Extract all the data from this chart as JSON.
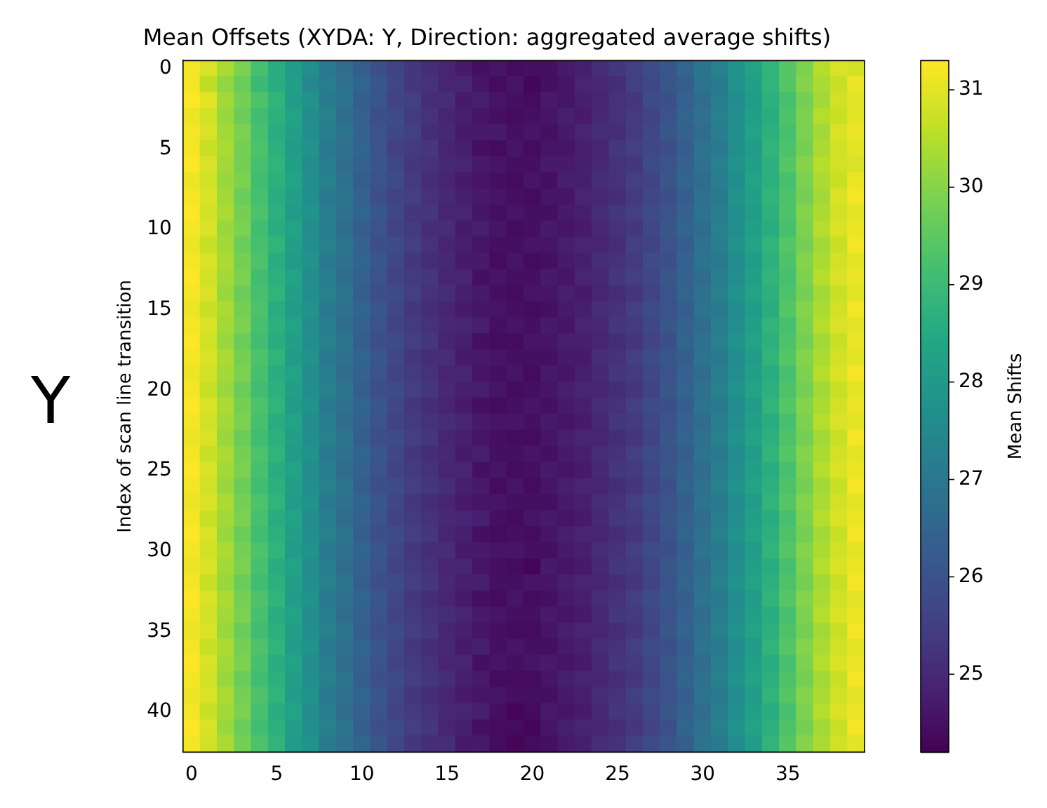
{
  "chart_data": {
    "type": "heatmap",
    "title": "Mean Offsets (XYDA: Y, Direction: aggregated average shifts)",
    "ylabel": "Index of scan line transition",
    "clabel": "Mean Shifts",
    "annotations": [
      "Y"
    ],
    "categories": [
      "0",
      null,
      null,
      null,
      null,
      "5",
      null,
      null,
      null,
      null,
      "10",
      null,
      null,
      null,
      null,
      "15",
      null,
      null,
      null,
      null,
      "20",
      null,
      null,
      null,
      null,
      "25",
      null,
      null,
      null,
      null,
      "30",
      null,
      null,
      null,
      null,
      "35",
      null,
      null,
      null,
      null
    ],
    "y_categories": [
      "0",
      null,
      null,
      null,
      null,
      "5",
      null,
      null,
      null,
      null,
      "10",
      null,
      null,
      null,
      null,
      "15",
      null,
      null,
      null,
      null,
      "20",
      null,
      null,
      null,
      null,
      "25",
      null,
      null,
      null,
      null,
      "30",
      null,
      null,
      null,
      null,
      "35",
      null,
      null,
      null,
      null,
      "40",
      null,
      null
    ],
    "clim": [
      24.2,
      31.3
    ],
    "cticks": [
      25,
      26,
      27,
      28,
      29,
      30,
      31
    ],
    "cells": [
      [
        31.2,
        30.9,
        30.4,
        29.9,
        29.2,
        28.6,
        28.1,
        27.7,
        27.1,
        26.7,
        26.3,
        25.9,
        25.6,
        25.3,
        25.1,
        24.9,
        24.7,
        24.5,
        24.6,
        24.4,
        24.5,
        24.5,
        24.7,
        24.8,
        25.1,
        25.3,
        25.5,
        25.8,
        26.1,
        26.5,
        26.9,
        27.3,
        27.8,
        28.3,
        28.8,
        29.4,
        29.9,
        30.5,
        30.9,
        30.8
      ],
      [
        31.2,
        30.6,
        30.1,
        29.7,
        29.0,
        28.6,
        28.2,
        27.5,
        27.2,
        26.8,
        26.5,
        26.1,
        25.7,
        25.3,
        25.2,
        24.9,
        24.9,
        24.6,
        24.4,
        24.6,
        24.3,
        24.5,
        24.6,
        24.9,
        25.0,
        25.1,
        25.5,
        25.7,
        26.1,
        26.3,
        26.9,
        27.1,
        27.8,
        28.2,
        28.8,
        29.4,
        30.0,
        30.4,
        30.7,
        31.1
      ],
      [
        31.3,
        31.0,
        30.3,
        29.8,
        29.3,
        28.8,
        28.1,
        27.8,
        27.1,
        26.9,
        26.3,
        26.1,
        25.6,
        25.5,
        25.1,
        25.1,
        24.7,
        24.8,
        24.6,
        24.5,
        24.4,
        24.7,
        24.6,
        24.8,
        24.9,
        25.2,
        25.3,
        25.8,
        25.9,
        26.4,
        26.7,
        27.2,
        27.6,
        28.1,
        28.7,
        29.2,
        29.8,
        30.3,
        30.8,
        31.0
      ],
      [
        31.1,
        30.8,
        30.2,
        29.7,
        29.1,
        28.7,
        28.3,
        27.6,
        27.3,
        26.7,
        26.4,
        25.9,
        25.8,
        25.4,
        25.2,
        24.9,
        24.8,
        24.6,
        24.5,
        24.4,
        24.5,
        24.6,
        24.8,
        24.7,
        25.0,
        25.2,
        25.4,
        25.6,
        26.0,
        26.5,
        26.8,
        27.3,
        27.7,
        28.2,
        28.6,
        29.3,
        29.9,
        30.5,
        30.7,
        31.0
      ],
      [
        31.2,
        30.9,
        30.3,
        29.9,
        29.2,
        28.6,
        28.2,
        27.7,
        27.2,
        26.9,
        26.4,
        26.0,
        25.7,
        25.5,
        25.1,
        25.0,
        24.7,
        24.7,
        24.7,
        24.5,
        24.6,
        24.5,
        24.7,
        24.9,
        25.1,
        25.1,
        25.4,
        25.7,
        26.1,
        26.4,
        26.7,
        27.2,
        27.7,
        28.3,
        28.7,
        29.2,
        29.9,
        30.3,
        30.9,
        31.1
      ],
      [
        31.2,
        30.7,
        30.4,
        29.8,
        29.3,
        28.7,
        28.1,
        27.8,
        27.1,
        26.8,
        26.5,
        26.0,
        25.5,
        25.4,
        25.3,
        24.9,
        24.8,
        24.5,
        24.4,
        24.6,
        24.4,
        24.6,
        24.6,
        24.8,
        24.9,
        25.3,
        25.5,
        25.7,
        25.9,
        26.3,
        26.9,
        27.1,
        27.7,
        28.1,
        28.8,
        29.3,
        29.8,
        30.4,
        30.8,
        31.0
      ],
      [
        31.3,
        30.9,
        30.3,
        29.8,
        29.2,
        28.8,
        28.2,
        27.6,
        27.2,
        26.7,
        26.4,
        26.1,
        25.7,
        25.3,
        25.2,
        25.0,
        24.9,
        24.7,
        24.6,
        24.5,
        24.5,
        24.7,
        24.7,
        24.8,
        25.0,
        25.2,
        25.3,
        25.8,
        26.0,
        26.4,
        26.8,
        27.3,
        27.8,
        28.2,
        28.7,
        29.4,
        30.0,
        30.5,
        30.8,
        30.9
      ],
      [
        31.1,
        30.8,
        30.2,
        29.9,
        29.1,
        28.7,
        28.3,
        27.7,
        27.3,
        26.8,
        26.3,
        26.0,
        25.8,
        25.4,
        25.1,
        24.9,
        24.7,
        24.6,
        24.5,
        24.4,
        24.6,
        24.5,
        24.8,
        24.8,
        25.1,
        25.2,
        25.5,
        25.6,
        26.1,
        26.5,
        26.7,
        27.2,
        27.6,
        28.3,
        28.7,
        29.2,
        29.9,
        30.4,
        30.7,
        31.1
      ],
      [
        31.2,
        30.9,
        30.3,
        29.7,
        29.2,
        28.6,
        28.2,
        27.7,
        27.1,
        26.9,
        26.4,
        25.9,
        25.6,
        25.5,
        25.2,
        25.0,
        24.8,
        24.7,
        24.6,
        24.5,
        24.4,
        24.6,
        24.6,
        24.9,
        25.0,
        25.1,
        25.4,
        25.7,
        25.9,
        26.3,
        26.8,
        27.1,
        27.8,
        28.2,
        28.8,
        29.3,
        29.8,
        30.3,
        30.9,
        31.2
      ],
      [
        31.3,
        30.8,
        30.4,
        29.8,
        29.3,
        28.7,
        28.1,
        27.8,
        27.2,
        26.8,
        26.5,
        26.1,
        25.7,
        25.3,
        25.3,
        24.9,
        24.9,
        24.6,
        24.5,
        24.6,
        24.5,
        24.5,
        24.7,
        24.8,
        25.1,
        25.3,
        25.5,
        25.8,
        26.0,
        26.4,
        26.9,
        27.2,
        27.7,
        28.1,
        28.7,
        29.3,
        30.0,
        30.4,
        30.8,
        31.0
      ],
      [
        31.2,
        30.9,
        30.2,
        29.9,
        29.1,
        28.6,
        28.3,
        27.6,
        27.2,
        26.7,
        26.3,
        26.0,
        25.6,
        25.4,
        25.1,
        25.1,
        24.7,
        24.8,
        24.6,
        24.4,
        24.5,
        24.7,
        24.6,
        24.7,
        25.0,
        25.2,
        25.3,
        25.7,
        26.1,
        26.5,
        26.7,
        27.3,
        27.7,
        28.2,
        28.6,
        29.2,
        29.9,
        30.5,
        30.9,
        31.1
      ],
      [
        31.1,
        30.7,
        30.3,
        29.7,
        29.2,
        28.8,
        28.2,
        27.7,
        27.3,
        26.9,
        26.4,
        25.9,
        25.8,
        25.5,
        25.2,
        24.9,
        24.8,
        24.6,
        24.5,
        24.5,
        24.6,
        24.6,
        24.8,
        24.9,
        24.9,
        25.1,
        25.5,
        25.6,
        26.0,
        26.3,
        26.8,
        27.2,
        27.8,
        28.3,
        28.8,
        29.4,
        29.8,
        30.3,
        30.7,
        31.2
      ],
      [
        31.2,
        30.9,
        30.4,
        29.8,
        29.3,
        28.6,
        28.1,
        27.8,
        27.1,
        26.8,
        26.5,
        26.1,
        25.7,
        25.3,
        25.1,
        25.0,
        24.7,
        24.7,
        24.4,
        24.6,
        24.4,
        24.5,
        24.7,
        24.8,
        25.1,
        25.2,
        25.4,
        25.8,
        25.9,
        26.4,
        26.9,
        27.1,
        27.6,
        28.1,
        28.7,
        29.3,
        30.0,
        30.4,
        30.8,
        31.0
      ],
      [
        31.3,
        30.8,
        30.3,
        29.9,
        29.1,
        28.7,
        28.3,
        27.6,
        27.2,
        26.7,
        26.4,
        26.0,
        25.6,
        25.4,
        25.3,
        24.9,
        24.9,
        24.5,
        24.6,
        24.5,
        24.5,
        24.7,
        24.6,
        24.9,
        25.0,
        25.3,
        25.5,
        25.7,
        26.1,
        26.4,
        26.7,
        27.2,
        27.7,
        28.2,
        28.8,
        29.2,
        29.9,
        30.5,
        30.9,
        31.1
      ],
      [
        31.2,
        30.9,
        30.2,
        29.7,
        29.2,
        28.8,
        28.2,
        27.7,
        27.3,
        26.9,
        26.3,
        25.9,
        25.8,
        25.5,
        25.2,
        25.1,
        24.8,
        24.7,
        24.5,
        24.4,
        24.6,
        24.6,
        24.8,
        24.7,
        24.9,
        25.1,
        25.3,
        25.6,
        26.0,
        26.5,
        26.8,
        27.3,
        27.8,
        28.3,
        28.7,
        29.3,
        29.8,
        30.3,
        30.7,
        31.0
      ],
      [
        31.1,
        30.7,
        30.4,
        29.8,
        29.3,
        28.6,
        28.1,
        27.8,
        27.1,
        26.8,
        26.5,
        26.1,
        25.7,
        25.3,
        25.1,
        24.9,
        24.7,
        24.6,
        24.6,
        24.5,
        24.4,
        24.5,
        24.7,
        24.8,
        25.1,
        25.2,
        25.5,
        25.8,
        26.0,
        26.3,
        26.9,
        27.1,
        27.6,
        28.1,
        28.6,
        29.4,
        30.0,
        30.4,
        30.8,
        31.2
      ],
      [
        31.2,
        30.9,
        30.3,
        29.9,
        29.2,
        28.7,
        28.3,
        27.6,
        27.2,
        26.7,
        26.4,
        26.0,
        25.6,
        25.4,
        25.2,
        25.0,
        24.9,
        24.8,
        24.5,
        24.6,
        24.5,
        24.7,
        24.6,
        24.9,
        25.0,
        25.3,
        25.4,
        25.7,
        26.1,
        26.4,
        26.7,
        27.2,
        27.7,
        28.2,
        28.8,
        29.2,
        29.9,
        30.5,
        30.9,
        31.0
      ],
      [
        31.3,
        30.8,
        30.2,
        29.7,
        29.1,
        28.6,
        28.2,
        27.7,
        27.3,
        26.9,
        26.3,
        25.9,
        25.8,
        25.5,
        25.3,
        24.9,
        24.8,
        24.5,
        24.4,
        24.4,
        24.6,
        24.6,
        24.8,
        24.8,
        24.9,
        25.1,
        25.3,
        25.6,
        25.9,
        26.5,
        26.8,
        27.3,
        27.8,
        28.3,
        28.7,
        29.3,
        29.8,
        30.3,
        30.7,
        31.1
      ],
      [
        31.2,
        30.9,
        30.4,
        29.8,
        29.3,
        28.8,
        28.1,
        27.8,
        27.1,
        26.8,
        26.5,
        26.1,
        25.7,
        25.3,
        25.1,
        25.1,
        24.7,
        24.7,
        24.6,
        24.5,
        24.5,
        24.5,
        24.7,
        24.7,
        25.1,
        25.2,
        25.5,
        25.8,
        26.1,
        26.3,
        26.9,
        27.1,
        27.6,
        28.1,
        28.8,
        29.4,
        30.0,
        30.4,
        30.8,
        31.0
      ],
      [
        31.1,
        30.8,
        30.3,
        29.9,
        29.2,
        28.6,
        28.3,
        27.6,
        27.2,
        26.7,
        26.4,
        26.0,
        25.6,
        25.4,
        25.2,
        24.9,
        24.9,
        24.6,
        24.5,
        24.6,
        24.4,
        24.7,
        24.6,
        24.8,
        25.0,
        25.3,
        25.4,
        25.7,
        26.0,
        26.4,
        26.7,
        27.2,
        27.7,
        28.2,
        28.6,
        29.2,
        29.9,
        30.5,
        30.9,
        31.2
      ],
      [
        31.2,
        30.7,
        30.2,
        29.7,
        29.1,
        28.7,
        28.2,
        27.7,
        27.3,
        26.9,
        26.3,
        25.9,
        25.8,
        25.5,
        25.3,
        25.0,
        24.8,
        24.8,
        24.6,
        24.4,
        24.5,
        24.6,
        24.8,
        24.9,
        24.9,
        25.1,
        25.3,
        25.6,
        26.1,
        26.5,
        26.8,
        27.3,
        27.8,
        28.3,
        28.7,
        29.3,
        29.8,
        30.3,
        30.7,
        31.0
      ],
      [
        31.3,
        30.9,
        30.4,
        29.8,
        29.3,
        28.8,
        28.1,
        27.8,
        27.1,
        26.8,
        26.5,
        26.1,
        25.7,
        25.3,
        25.1,
        24.9,
        24.7,
        24.5,
        24.4,
        24.5,
        24.6,
        24.5,
        24.7,
        24.8,
        25.1,
        25.2,
        25.5,
        25.8,
        25.9,
        26.3,
        26.9,
        27.1,
        27.6,
        28.1,
        28.8,
        29.4,
        30.0,
        30.4,
        30.8,
        31.1
      ],
      [
        31.2,
        30.8,
        30.3,
        29.9,
        29.2,
        28.6,
        28.3,
        27.6,
        27.2,
        26.7,
        26.4,
        26.0,
        25.6,
        25.4,
        25.2,
        25.1,
        24.9,
        24.7,
        24.6,
        24.6,
        24.5,
        24.7,
        24.6,
        24.7,
        25.0,
        25.3,
        25.4,
        25.7,
        26.0,
        26.4,
        26.7,
        27.2,
        27.7,
        28.2,
        28.6,
        29.2,
        29.9,
        30.5,
        30.9,
        31.0
      ],
      [
        31.1,
        30.9,
        30.2,
        29.7,
        29.1,
        28.7,
        28.2,
        27.7,
        27.3,
        26.9,
        26.3,
        25.9,
        25.8,
        25.5,
        25.3,
        24.9,
        24.8,
        24.6,
        24.5,
        24.4,
        24.4,
        24.6,
        24.8,
        24.9,
        24.9,
        25.1,
        25.3,
        25.6,
        26.1,
        26.5,
        26.8,
        27.3,
        27.8,
        28.3,
        28.7,
        29.3,
        29.8,
        30.3,
        30.7,
        31.2
      ],
      [
        31.2,
        30.7,
        30.4,
        29.8,
        29.3,
        28.8,
        28.1,
        27.8,
        27.1,
        26.8,
        26.5,
        26.1,
        25.7,
        25.3,
        25.1,
        25.0,
        24.7,
        24.8,
        24.5,
        24.5,
        24.6,
        24.5,
        24.7,
        24.8,
        25.1,
        25.2,
        25.5,
        25.8,
        26.0,
        26.3,
        26.9,
        27.1,
        27.6,
        28.1,
        28.8,
        29.4,
        30.0,
        30.4,
        30.8,
        31.0
      ],
      [
        31.3,
        30.9,
        30.3,
        29.9,
        29.2,
        28.6,
        28.3,
        27.6,
        27.2,
        26.7,
        26.4,
        26.0,
        25.6,
        25.4,
        25.2,
        24.9,
        24.9,
        24.5,
        24.6,
        24.4,
        24.5,
        24.7,
        24.6,
        24.7,
        25.0,
        25.3,
        25.4,
        25.7,
        26.1,
        26.4,
        26.7,
        27.2,
        27.7,
        28.2,
        28.6,
        29.2,
        29.9,
        30.5,
        30.9,
        31.1
      ],
      [
        31.2,
        30.8,
        30.2,
        29.7,
        29.1,
        28.7,
        28.2,
        27.7,
        27.3,
        26.9,
        26.3,
        25.9,
        25.8,
        25.5,
        25.3,
        25.1,
        24.8,
        24.7,
        24.4,
        24.6,
        24.4,
        24.6,
        24.8,
        24.9,
        24.9,
        25.1,
        25.3,
        25.6,
        25.9,
        26.5,
        26.8,
        27.3,
        27.8,
        28.3,
        28.7,
        29.3,
        29.8,
        30.3,
        30.7,
        31.2
      ],
      [
        31.1,
        30.9,
        30.4,
        29.8,
        29.3,
        28.8,
        28.1,
        27.8,
        27.1,
        26.8,
        26.5,
        26.1,
        25.7,
        25.3,
        25.1,
        24.9,
        24.7,
        24.6,
        24.6,
        24.5,
        24.5,
        24.5,
        24.7,
        24.8,
        25.1,
        25.2,
        25.5,
        25.8,
        26.0,
        26.3,
        26.9,
        27.1,
        27.6,
        28.1,
        28.8,
        29.4,
        30.0,
        30.4,
        30.8,
        31.0
      ],
      [
        31.2,
        30.7,
        30.3,
        29.9,
        29.2,
        28.6,
        28.3,
        27.6,
        27.2,
        26.7,
        26.4,
        26.0,
        25.6,
        25.4,
        25.2,
        25.0,
        24.9,
        24.8,
        24.5,
        24.4,
        24.6,
        24.7,
        24.6,
        24.7,
        25.0,
        25.3,
        25.4,
        25.7,
        26.1,
        26.4,
        26.7,
        27.2,
        27.7,
        28.2,
        28.6,
        29.2,
        29.9,
        30.5,
        30.9,
        31.1
      ],
      [
        31.3,
        30.9,
        30.2,
        29.7,
        29.1,
        28.7,
        28.2,
        27.7,
        27.3,
        26.9,
        26.3,
        25.9,
        25.8,
        25.5,
        25.3,
        24.9,
        24.8,
        24.5,
        24.4,
        24.5,
        24.4,
        24.6,
        24.8,
        24.9,
        24.9,
        25.1,
        25.3,
        25.6,
        26.0,
        26.5,
        26.8,
        27.3,
        27.8,
        28.3,
        28.7,
        29.3,
        29.8,
        30.3,
        30.7,
        31.2
      ],
      [
        31.2,
        30.8,
        30.4,
        29.8,
        29.3,
        28.8,
        28.1,
        27.8,
        27.1,
        26.8,
        26.5,
        26.1,
        25.7,
        25.3,
        25.1,
        25.1,
        24.7,
        24.7,
        24.6,
        24.6,
        24.5,
        24.5,
        24.7,
        24.8,
        25.1,
        25.2,
        25.5,
        25.8,
        25.9,
        26.3,
        26.9,
        27.1,
        27.6,
        28.1,
        28.8,
        29.4,
        30.0,
        30.4,
        30.8,
        31.0
      ],
      [
        31.1,
        30.9,
        30.3,
        29.9,
        29.2,
        28.6,
        28.3,
        27.6,
        27.2,
        26.7,
        26.4,
        26.0,
        25.6,
        25.4,
        25.2,
        24.9,
        24.9,
        24.6,
        24.5,
        24.4,
        24.3,
        24.7,
        24.6,
        24.7,
        25.0,
        25.3,
        25.4,
        25.7,
        26.1,
        26.4,
        26.7,
        27.2,
        27.7,
        28.2,
        28.6,
        29.2,
        29.9,
        30.5,
        30.9,
        31.1
      ],
      [
        31.2,
        30.7,
        30.2,
        29.7,
        29.1,
        28.7,
        28.2,
        27.7,
        27.3,
        26.9,
        26.3,
        25.9,
        25.8,
        25.5,
        25.3,
        25.0,
        24.8,
        24.8,
        24.5,
        24.5,
        24.6,
        24.6,
        24.8,
        24.9,
        24.9,
        25.1,
        25.3,
        25.6,
        26.0,
        26.5,
        26.8,
        27.3,
        27.8,
        28.3,
        28.7,
        29.3,
        29.8,
        30.3,
        30.7,
        31.2
      ],
      [
        31.3,
        30.9,
        30.4,
        29.8,
        29.3,
        28.8,
        28.1,
        27.8,
        27.1,
        26.8,
        26.5,
        26.1,
        25.7,
        25.3,
        25.1,
        24.9,
        24.7,
        24.5,
        24.4,
        24.6,
        24.4,
        24.5,
        24.7,
        24.8,
        25.1,
        25.2,
        25.5,
        25.8,
        26.1,
        26.3,
        26.9,
        27.1,
        27.6,
        28.1,
        28.8,
        29.4,
        30.0,
        30.4,
        30.8,
        31.0
      ],
      [
        31.2,
        30.8,
        30.3,
        29.9,
        29.2,
        28.6,
        28.3,
        27.6,
        27.2,
        26.7,
        26.4,
        26.0,
        25.6,
        25.4,
        25.2,
        25.1,
        24.9,
        24.7,
        24.6,
        24.5,
        24.5,
        24.7,
        24.6,
        24.7,
        25.0,
        25.3,
        25.4,
        25.7,
        26.0,
        26.4,
        26.7,
        27.2,
        27.7,
        28.2,
        28.6,
        29.2,
        29.9,
        30.5,
        30.9,
        31.1
      ],
      [
        31.1,
        30.9,
        30.2,
        29.7,
        29.1,
        28.7,
        28.2,
        27.7,
        27.3,
        26.9,
        26.3,
        25.9,
        25.8,
        25.5,
        25.3,
        24.9,
        24.8,
        24.6,
        24.5,
        24.4,
        24.4,
        24.6,
        24.8,
        24.9,
        24.9,
        25.1,
        25.3,
        25.6,
        26.1,
        26.5,
        26.8,
        27.3,
        27.8,
        28.3,
        28.7,
        29.3,
        29.8,
        30.3,
        30.7,
        31.2
      ],
      [
        31.2,
        30.7,
        30.4,
        29.8,
        29.3,
        28.8,
        28.1,
        27.8,
        27.1,
        26.8,
        26.5,
        26.1,
        25.7,
        25.3,
        25.1,
        25.0,
        24.7,
        24.8,
        24.5,
        24.6,
        24.5,
        24.5,
        24.7,
        24.8,
        25.1,
        25.2,
        25.5,
        25.8,
        25.9,
        26.3,
        26.9,
        27.1,
        27.6,
        28.1,
        28.8,
        29.4,
        30.0,
        30.4,
        30.8,
        31.0
      ],
      [
        31.3,
        30.9,
        30.3,
        29.9,
        29.2,
        28.6,
        28.3,
        27.6,
        27.2,
        26.7,
        26.4,
        26.0,
        25.6,
        25.4,
        25.2,
        24.9,
        24.9,
        24.5,
        24.6,
        24.5,
        24.6,
        24.7,
        24.6,
        24.7,
        25.0,
        25.3,
        25.4,
        25.7,
        26.1,
        26.4,
        26.7,
        27.2,
        27.7,
        28.2,
        28.6,
        29.2,
        29.9,
        30.5,
        30.9,
        31.1
      ],
      [
        31.2,
        30.8,
        30.2,
        29.7,
        29.1,
        28.7,
        28.2,
        27.7,
        27.3,
        26.9,
        26.3,
        25.9,
        25.8,
        25.5,
        25.3,
        25.1,
        24.8,
        24.7,
        24.4,
        24.4,
        24.4,
        24.6,
        24.8,
        24.9,
        24.9,
        25.1,
        25.3,
        25.6,
        26.0,
        26.5,
        26.8,
        27.3,
        27.8,
        28.3,
        28.7,
        29.3,
        29.8,
        30.3,
        30.7,
        31.2
      ],
      [
        31.1,
        30.9,
        30.4,
        29.8,
        29.3,
        28.8,
        28.1,
        27.8,
        27.1,
        26.8,
        26.5,
        26.1,
        25.7,
        25.3,
        25.1,
        24.9,
        24.7,
        24.6,
        24.6,
        24.5,
        24.5,
        24.5,
        24.7,
        24.8,
        25.1,
        25.2,
        25.5,
        25.8,
        26.0,
        26.3,
        26.9,
        27.1,
        27.6,
        28.1,
        28.8,
        29.4,
        30.0,
        30.4,
        30.8,
        31.0
      ],
      [
        31.2,
        30.7,
        30.3,
        29.9,
        29.2,
        28.6,
        28.3,
        27.6,
        27.2,
        26.7,
        26.4,
        26.0,
        25.6,
        25.4,
        25.2,
        25.0,
        24.9,
        24.8,
        24.5,
        24.3,
        24.4,
        24.7,
        24.6,
        24.7,
        25.0,
        25.3,
        25.4,
        25.7,
        26.1,
        26.4,
        26.7,
        27.2,
        27.7,
        28.2,
        28.6,
        29.2,
        29.9,
        30.5,
        30.9,
        31.1
      ],
      [
        31.3,
        30.9,
        30.2,
        29.7,
        29.1,
        28.7,
        28.2,
        27.7,
        27.3,
        26.9,
        26.3,
        25.9,
        25.8,
        25.5,
        25.3,
        24.9,
        24.8,
        24.5,
        24.4,
        24.4,
        24.3,
        24.6,
        24.8,
        24.9,
        24.9,
        25.1,
        25.3,
        25.6,
        25.9,
        26.5,
        26.8,
        27.3,
        27.8,
        28.3,
        28.7,
        29.3,
        29.8,
        30.3,
        30.7,
        31.2
      ],
      [
        31.2,
        30.8,
        30.4,
        29.8,
        29.3,
        28.8,
        28.1,
        27.8,
        27.1,
        26.8,
        26.5,
        26.1,
        25.7,
        25.3,
        25.1,
        25.1,
        24.7,
        24.7,
        24.4,
        24.3,
        24.4,
        24.5,
        24.7,
        24.8,
        25.1,
        25.2,
        25.5,
        25.8,
        26.1,
        26.3,
        26.9,
        27.1,
        27.6,
        28.1,
        28.8,
        29.4,
        30.0,
        30.4,
        30.8,
        31.0
      ]
    ]
  }
}
